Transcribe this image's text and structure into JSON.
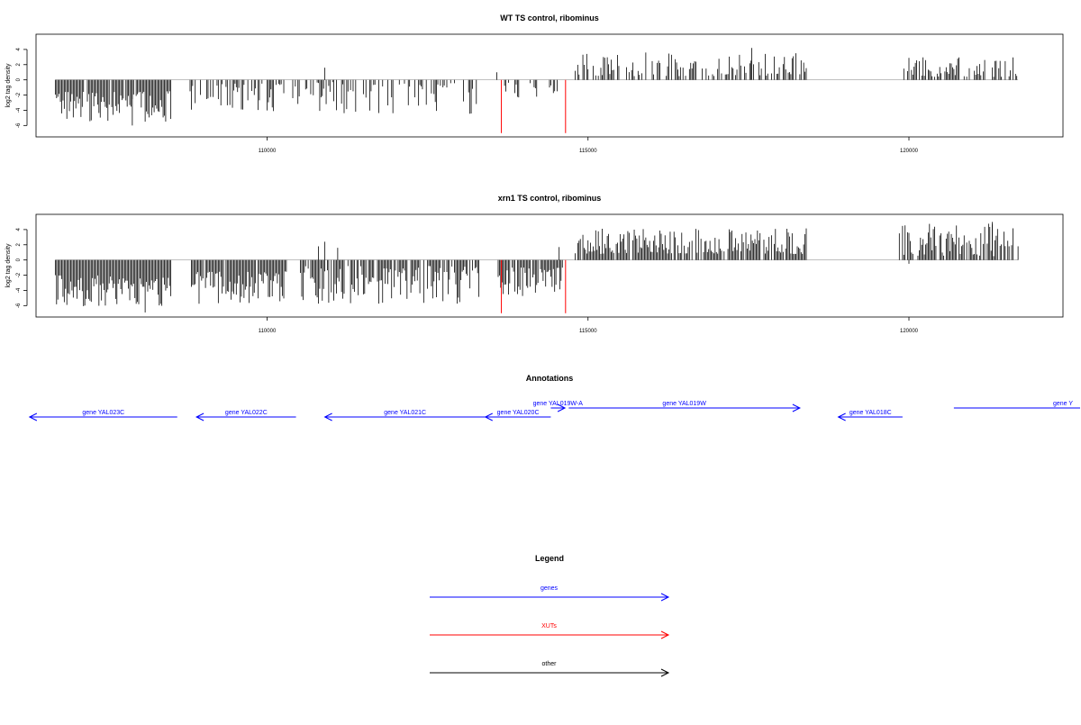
{
  "colors": {
    "gene": "#0000ff",
    "xut": "#ff0000",
    "other": "#000000"
  },
  "chart_data": [
    {
      "type": "bar",
      "title": "WT TS control, ribominus",
      "ylabel": "log2 tag density",
      "xlim": [
        106400,
        122400
      ],
      "ylim": [
        -7.5,
        6
      ],
      "yticks": [
        -6,
        -4,
        -2,
        0,
        2,
        4
      ],
      "ytick_labels": [
        "-6",
        "-4",
        "-2",
        "0",
        "2",
        "4"
      ],
      "xticks": [
        110000,
        115000,
        120000
      ],
      "xtick_labels": [
        "110000",
        "115000",
        "120000"
      ],
      "grid": false,
      "xut_lines": [
        113650,
        114650
      ],
      "xut_value": -7,
      "segments": [
        {
          "start": 106700,
          "end": 108500,
          "sign": -1,
          "min": 1.5,
          "max": 5.5,
          "density": 0.95
        },
        {
          "start": 108800,
          "end": 110300,
          "sign": -1,
          "min": 0.5,
          "max": 4.2,
          "density": 0.55
        },
        {
          "start": 110400,
          "end": 113300,
          "sign": -1,
          "min": 0.3,
          "max": 4.5,
          "density": 0.45
        },
        {
          "start": 113700,
          "end": 114600,
          "sign": -1,
          "min": 0.2,
          "max": 2.5,
          "density": 0.3
        },
        {
          "start": 114800,
          "end": 118400,
          "sign": 1,
          "min": 0.5,
          "max": 3.6,
          "density": 0.55
        },
        {
          "start": 119900,
          "end": 121700,
          "sign": 1,
          "min": 0.4,
          "max": 3.0,
          "density": 0.55
        }
      ],
      "spikes": [
        {
          "x": 110900,
          "v": 1.6
        },
        {
          "x": 113580,
          "v": 1.0
        },
        {
          "x": 117550,
          "v": 4.2
        },
        {
          "x": 107900,
          "v": -6.0
        }
      ]
    },
    {
      "type": "bar",
      "title": "xrn1 TS control, ribominus",
      "ylabel": "log2 tag density",
      "xlim": [
        106400,
        122400
      ],
      "ylim": [
        -7.5,
        6
      ],
      "yticks": [
        -6,
        -4,
        -2,
        0,
        2,
        4
      ],
      "ytick_labels": [
        "-6",
        "-4",
        "-2",
        "0",
        "2",
        "4"
      ],
      "xticks": [
        110000,
        115000,
        120000
      ],
      "xtick_labels": [
        "110000",
        "115000",
        "120000"
      ],
      "grid": false,
      "xut_lines": [
        113650,
        114650
      ],
      "xut_value": -7,
      "segments": [
        {
          "start": 106700,
          "end": 108500,
          "sign": -1,
          "min": 2.0,
          "max": 6.2,
          "density": 1.0
        },
        {
          "start": 108800,
          "end": 110300,
          "sign": -1,
          "min": 1.5,
          "max": 5.8,
          "density": 0.95
        },
        {
          "start": 110500,
          "end": 113300,
          "sign": -1,
          "min": 0.8,
          "max": 5.8,
          "density": 0.75
        },
        {
          "start": 113600,
          "end": 114600,
          "sign": -1,
          "min": 1.0,
          "max": 4.8,
          "density": 0.9
        },
        {
          "start": 114800,
          "end": 118400,
          "sign": 1,
          "min": 0.8,
          "max": 4.2,
          "density": 0.85
        },
        {
          "start": 119900,
          "end": 121700,
          "sign": 1,
          "min": 0.5,
          "max": 4.8,
          "density": 0.8
        }
      ],
      "spikes": [
        {
          "x": 110800,
          "v": 1.8
        },
        {
          "x": 110900,
          "v": 2.4
        },
        {
          "x": 111100,
          "v": 1.6
        },
        {
          "x": 114550,
          "v": 1.7
        },
        {
          "x": 119850,
          "v": 3.5
        },
        {
          "x": 121300,
          "v": 5.0
        },
        {
          "x": 120000,
          "v": -0.5
        },
        {
          "x": 108100,
          "v": -6.9
        }
      ]
    }
  ],
  "annotations": {
    "title": "Annotations",
    "genes": [
      {
        "label": "gene YAL023C",
        "start": 106300,
        "end": 108600,
        "strand": "-",
        "row": 1
      },
      {
        "label": "gene YAL022C",
        "start": 108900,
        "end": 110450,
        "strand": "-",
        "row": 1
      },
      {
        "label": "gene YAL021C",
        "start": 110900,
        "end": 113400,
        "strand": "-",
        "row": 1
      },
      {
        "label": "gene YAL020C",
        "start": 113400,
        "end": 114420,
        "strand": "-",
        "row": 1
      },
      {
        "label": "gene YAL019W-A",
        "start": 114420,
        "end": 114640,
        "strand": "+",
        "row": 0
      },
      {
        "label": "gene YAL019W",
        "start": 114700,
        "end": 118300,
        "strand": "+",
        "row": 0
      },
      {
        "label": "gene YAL018C",
        "start": 118900,
        "end": 119900,
        "strand": "-",
        "row": 1
      },
      {
        "label": "gene Y",
        "start": 120700,
        "end": 122700,
        "strand": "+",
        "row": 0
      }
    ]
  },
  "legend": {
    "title": "Legend",
    "items": [
      {
        "label": "genes",
        "color": "#0000ff"
      },
      {
        "label": "XUTs",
        "color": "#ff0000"
      },
      {
        "label": "other",
        "color": "#000000"
      }
    ]
  }
}
